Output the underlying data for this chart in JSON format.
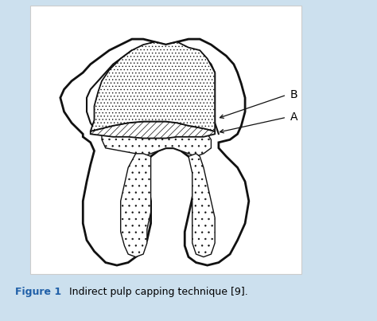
{
  "background_color": "#cce0ee",
  "panel_color": "#ffffff",
  "panel_border_color": "#cccccc",
  "figure_label_color": "#2060a8",
  "figure_label_bold": "Figure 1",
  "figure_label_normal": " Indirect pulp capping technique [9].",
  "label_A": "A",
  "label_B": "B",
  "line_color": "#111111",
  "arrow_color": "#333333",
  "caption_fontsize": 9.0,
  "label_fontsize": 10,
  "bottom_bar_color": "#2060a8",
  "hatch_linewidth": 0.5
}
